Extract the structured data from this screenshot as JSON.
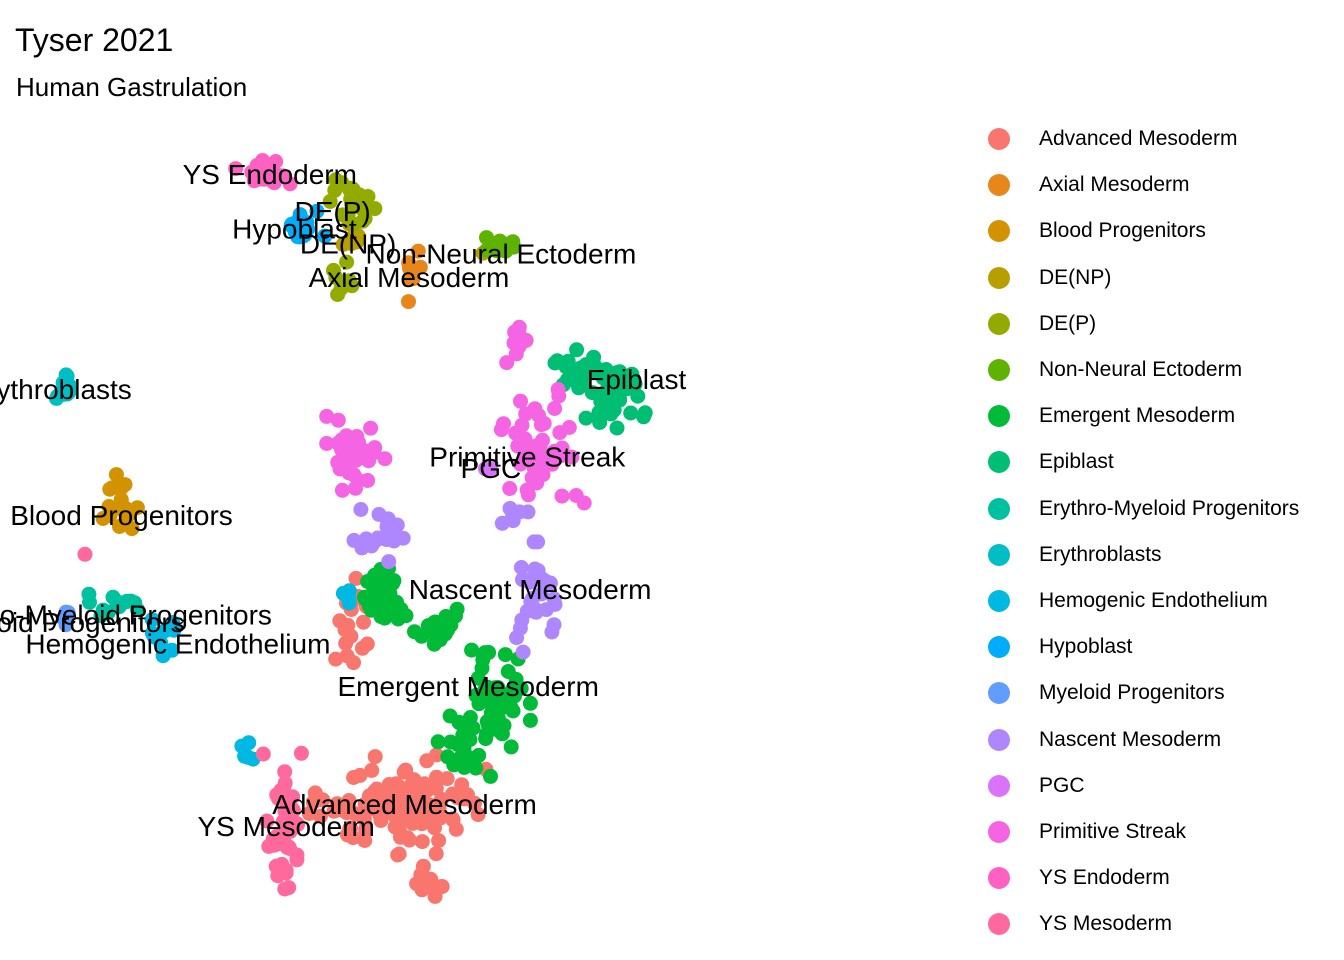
{
  "title": "Tyser 2021",
  "subtitle": "Human Gastrulation",
  "legend": [
    {
      "name": "Advanced Mesoderm",
      "color": "#F8766D"
    },
    {
      "name": "Axial Mesoderm",
      "color": "#E7861B"
    },
    {
      "name": "Blood Progenitors",
      "color": "#D39200"
    },
    {
      "name": "DE(NP)",
      "color": "#B79F00"
    },
    {
      "name": "DE(P)",
      "color": "#93AA00"
    },
    {
      "name": "Non-Neural Ectoderm",
      "color": "#5EB300"
    },
    {
      "name": "Emergent Mesoderm",
      "color": "#00BA38"
    },
    {
      "name": "Epiblast",
      "color": "#00BF74"
    },
    {
      "name": "Erythro-Myeloid Progenitors",
      "color": "#00C19F"
    },
    {
      "name": "Erythroblasts",
      "color": "#00BFC4"
    },
    {
      "name": "Hemogenic Endothelium",
      "color": "#00B9E3"
    },
    {
      "name": "Hypoblast",
      "color": "#00ADFA"
    },
    {
      "name": "Myeloid Progenitors",
      "color": "#619CFF"
    },
    {
      "name": "Nascent Mesoderm",
      "color": "#AE87FF"
    },
    {
      "name": "PGC",
      "color": "#DB72FB"
    },
    {
      "name": "Primitive Streak",
      "color": "#F564E3"
    },
    {
      "name": "YS Endoderm",
      "color": "#FF61C3"
    },
    {
      "name": "YS Mesoderm",
      "color": "#FF699C"
    }
  ],
  "chart_data": {
    "type": "scatter",
    "title": "Tyser 2021",
    "subtitle": "Human Gastrulation",
    "xlabel": "",
    "ylabel": "",
    "grid": false,
    "axes_visible": false,
    "legend_position": "right",
    "x_range": [
      0,
      100
    ],
    "y_range": [
      0,
      100
    ],
    "cluster_labels": [
      {
        "text": "YS Endoderm",
        "x": 28.0,
        "y": 94.6
      },
      {
        "text": "DE(P)",
        "x": 34.9,
        "y": 89.8
      },
      {
        "text": "Hypoblast",
        "x": 30.7,
        "y": 87.5
      },
      {
        "text": "DE(NP)",
        "x": 36.6,
        "y": 85.6
      },
      {
        "text": "Non-Neural Ectoderm",
        "x": 53.4,
        "y": 84.3
      },
      {
        "text": "Axial Mesoderm",
        "x": 43.3,
        "y": 81.2
      },
      {
        "text": "ythroblasts",
        "x": 5.4,
        "y": 66.7
      },
      {
        "text": "Epiblast",
        "x": 68.3,
        "y": 68.0
      },
      {
        "text": "Primitive Streak",
        "x": 56.3,
        "y": 57.9
      },
      {
        "text": "PGC",
        "x": 52.3,
        "y": 56.4
      },
      {
        "text": "Blood Progenitors",
        "x": 11.7,
        "y": 50.3
      },
      {
        "text": "Nascent Mesoderm",
        "x": 56.6,
        "y": 40.7
      },
      {
        "text": "hro-Myeloid Progenitors",
        "x": 11.9,
        "y": 37.4
      },
      {
        "text": "oid Progenitors",
        "x": 8.3,
        "y": 36.4
      },
      {
        "text": "Hemogenic Endothelium",
        "x": 17.9,
        "y": 33.6
      },
      {
        "text": "Emergent Mesoderm",
        "x": 49.8,
        "y": 28.1
      },
      {
        "text": "Advanced Mesoderm",
        "x": 42.8,
        "y": 12.8
      },
      {
        "text": "YS Mesoderm",
        "x": 29.8,
        "y": 9.9
      }
    ],
    "series": [
      {
        "name": "Advanced Mesoderm",
        "clusters": [
          {
            "cx": 42.0,
            "cy": 13.0,
            "rx": 7.5,
            "ry": 5.0,
            "n": 120
          },
          {
            "cx": 37.0,
            "cy": 36.0,
            "rx": 1.8,
            "ry": 5.5,
            "n": 18
          },
          {
            "cx": 45.0,
            "cy": 3.0,
            "rx": 1.5,
            "ry": 2.0,
            "n": 10
          }
        ]
      },
      {
        "name": "Axial Mesoderm",
        "clusters": [
          {
            "cx": 43.5,
            "cy": 82.0,
            "rx": 0.8,
            "ry": 3.5,
            "n": 9
          }
        ]
      },
      {
        "name": "Blood Progenitors",
        "clusters": [
          {
            "cx": 11.5,
            "cy": 51.0,
            "rx": 1.5,
            "ry": 5.0,
            "n": 16
          }
        ]
      },
      {
        "name": "DE(NP)",
        "clusters": [
          {
            "cx": 36.5,
            "cy": 86.0,
            "rx": 1.2,
            "ry": 2.0,
            "n": 7
          },
          {
            "cx": 51.5,
            "cy": 84.8,
            "rx": 0.6,
            "ry": 0.5,
            "n": 2
          }
        ]
      },
      {
        "name": "DE(P)",
        "clusters": [
          {
            "cx": 37.5,
            "cy": 91.5,
            "rx": 2.2,
            "ry": 2.5,
            "n": 24
          },
          {
            "cx": 35.8,
            "cy": 80.5,
            "rx": 1.2,
            "ry": 2.3,
            "n": 7
          }
        ]
      },
      {
        "name": "Non-Neural Ectoderm",
        "clusters": [
          {
            "cx": 53.5,
            "cy": 85.5,
            "rx": 1.3,
            "ry": 1.2,
            "n": 16
          }
        ]
      },
      {
        "name": "Emergent Mesoderm",
        "clusters": [
          {
            "cx": 40.5,
            "cy": 39.5,
            "rx": 2.0,
            "ry": 3.5,
            "n": 35
          },
          {
            "cx": 46.5,
            "cy": 36.0,
            "rx": 2.5,
            "ry": 2.0,
            "n": 25
          },
          {
            "cx": 53.0,
            "cy": 27.0,
            "rx": 2.8,
            "ry": 5.5,
            "n": 55
          },
          {
            "cx": 49.0,
            "cy": 20.0,
            "rx": 2.5,
            "ry": 3.5,
            "n": 25
          }
        ]
      },
      {
        "name": "Epiblast",
        "clusters": [
          {
            "cx": 62.0,
            "cy": 69.5,
            "rx": 2.5,
            "ry": 2.0,
            "n": 25
          },
          {
            "cx": 66.0,
            "cy": 66.5,
            "rx": 2.5,
            "ry": 3.5,
            "n": 45
          }
        ]
      },
      {
        "name": "Erythro-Myeloid Progenitors",
        "clusters": [
          {
            "cx": 11.5,
            "cy": 39.0,
            "rx": 3.0,
            "ry": 1.5,
            "n": 14
          }
        ]
      },
      {
        "name": "Erythroblasts",
        "clusters": [
          {
            "cx": 5.5,
            "cy": 66.5,
            "rx": 1.0,
            "ry": 2.5,
            "n": 16
          }
        ]
      },
      {
        "name": "Hemogenic Endothelium",
        "clusters": [
          {
            "cx": 16.5,
            "cy": 35.0,
            "rx": 1.5,
            "ry": 2.5,
            "n": 10
          },
          {
            "cx": 25.5,
            "cy": 20.0,
            "rx": 1.0,
            "ry": 1.5,
            "n": 5
          },
          {
            "cx": 36.5,
            "cy": 39.5,
            "rx": 0.8,
            "ry": 1.0,
            "n": 4
          }
        ]
      },
      {
        "name": "Hypoblast",
        "clusters": [
          {
            "cx": 31.5,
            "cy": 87.5,
            "rx": 2.0,
            "ry": 2.0,
            "n": 22
          }
        ]
      },
      {
        "name": "Myeloid Progenitors",
        "clusters": [
          {
            "cx": 5.6,
            "cy": 37.2,
            "rx": 0.8,
            "ry": 1.0,
            "n": 5
          }
        ]
      },
      {
        "name": "Nascent Mesoderm",
        "clusters": [
          {
            "cx": 40.5,
            "cy": 48.5,
            "rx": 2.5,
            "ry": 3.0,
            "n": 22
          },
          {
            "cx": 57.0,
            "cy": 40.0,
            "rx": 2.5,
            "ry": 5.5,
            "n": 30
          },
          {
            "cx": 55.5,
            "cy": 50.0,
            "rx": 1.5,
            "ry": 2.0,
            "n": 6
          }
        ]
      },
      {
        "name": "PGC",
        "clusters": [
          {
            "cx": 52.0,
            "cy": 56.5,
            "rx": 0.4,
            "ry": 0.4,
            "n": 2
          }
        ]
      },
      {
        "name": "Primitive Streak",
        "clusters": [
          {
            "cx": 37.5,
            "cy": 58.5,
            "rx": 2.5,
            "ry": 4.0,
            "n": 40
          },
          {
            "cx": 58.0,
            "cy": 58.5,
            "rx": 3.5,
            "ry": 6.5,
            "n": 50
          },
          {
            "cx": 55.0,
            "cy": 73.0,
            "rx": 1.0,
            "ry": 4.5,
            "n": 8
          }
        ]
      },
      {
        "name": "YS Endoderm",
        "clusters": [
          {
            "cx": 27.5,
            "cy": 95.0,
            "rx": 3.0,
            "ry": 2.0,
            "n": 22
          }
        ]
      },
      {
        "name": "YS Mesoderm",
        "clusters": [
          {
            "cx": 29.5,
            "cy": 11.0,
            "rx": 1.8,
            "ry": 7.5,
            "n": 45
          },
          {
            "cx": 8.0,
            "cy": 45.5,
            "rx": 0.4,
            "ry": 0.4,
            "n": 1
          }
        ]
      }
    ]
  }
}
